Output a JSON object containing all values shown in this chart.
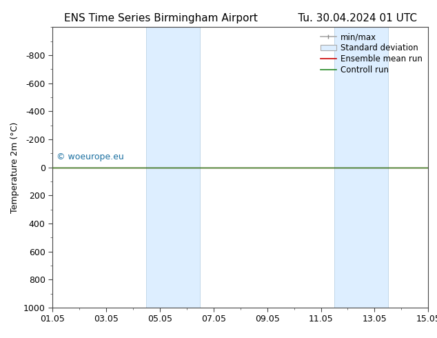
{
  "title_left": "ENS Time Series Birmingham Airport",
  "title_right": "Tu. 30.04.2024 01 UTC",
  "ylabel": "Temperature 2m (°C)",
  "xlim": [
    0,
    14
  ],
  "ylim_bottom": 1000,
  "ylim_top": -1000,
  "yticks": [
    -800,
    -600,
    -400,
    -200,
    0,
    200,
    400,
    600,
    800,
    1000
  ],
  "xtick_positions": [
    0,
    2,
    4,
    6,
    8,
    10,
    12,
    14
  ],
  "xtick_labels": [
    "01.05",
    "03.05",
    "05.05",
    "07.05",
    "09.05",
    "11.05",
    "13.05",
    "15.05"
  ],
  "shaded_bands": [
    {
      "xmin": 3.5,
      "xmax": 5.5
    },
    {
      "xmin": 10.5,
      "xmax": 12.5
    }
  ],
  "band_color": "#ddeeff",
  "band_edge_color": "#b0cce0",
  "control_run_y": 0,
  "ensemble_mean_y": 0,
  "watermark": "© woeurope.eu",
  "watermark_color": "#1a6fa0",
  "bg_color": "#ffffff",
  "title_fontsize": 11,
  "legend_fontsize": 8.5,
  "axis_fontsize": 9,
  "ylabel_fontsize": 9
}
